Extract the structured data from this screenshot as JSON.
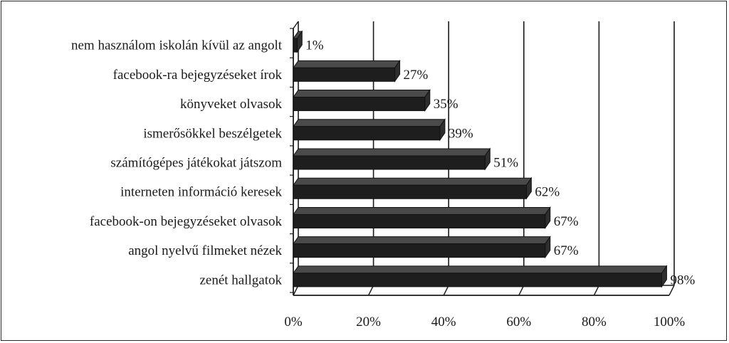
{
  "chart_data": {
    "type": "bar",
    "orientation": "horizontal",
    "categories": [
      "nem használom iskolán kívül az angolt",
      "facebook-ra bejegyzéseket írok",
      "könyveket olvasok",
      "ismerősökkel beszélgetek",
      "számítógépes játékokat játszom",
      "interneten információ keresek",
      "facebook-on bejegyzéseket olvasok",
      "angol nyelvű filmeket nézek",
      "zenét hallgatok"
    ],
    "values": [
      1,
      27,
      35,
      39,
      51,
      62,
      67,
      67,
      98
    ],
    "value_labels": [
      "1%",
      "27%",
      "35%",
      "39%",
      "51%",
      "62%",
      "67%",
      "67%",
      "98%"
    ],
    "xticks": [
      "0%",
      "20%",
      "40%",
      "60%",
      "80%",
      "100%"
    ],
    "xlim": [
      0,
      100
    ],
    "title": "",
    "xlabel": "",
    "ylabel": "",
    "grid": "vertical",
    "bar_color": "#1e1e1e",
    "style": "3d"
  }
}
